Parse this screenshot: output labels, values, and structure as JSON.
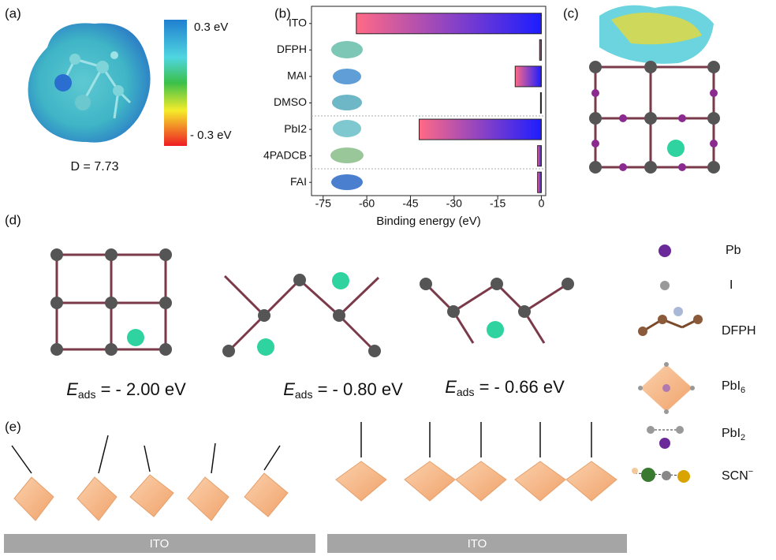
{
  "panel_labels": {
    "a": "(a)",
    "b": "(b)",
    "c": "(c)",
    "d": "(d)",
    "e": "(e)"
  },
  "panel_a": {
    "colorbar": {
      "top_label": "0.3 eV",
      "bottom_label": "- 0.3 eV"
    },
    "dipole": "D = 7.73"
  },
  "chart_data": {
    "type": "barh",
    "categories": [
      "ITO",
      "DFPH",
      "MAI",
      "DMSO",
      "PbI2",
      "4PADCB",
      "FAI"
    ],
    "values": [
      -63.6,
      -0.6,
      -9,
      -0.3,
      -42,
      -1.3,
      -1.3
    ],
    "xlim": [
      -79,
      1.5
    ],
    "xticks": [
      -75,
      -60,
      -45,
      -30,
      -15,
      0
    ],
    "xlabel": "Binding energy (eV)",
    "gradient_colors": [
      "#ff6a86",
      "#1d1dff"
    ]
  },
  "panel_d": {
    "energies": [
      {
        "symbol": "E",
        "subscript": "ads",
        "value": " = - 2.00 eV"
      },
      {
        "symbol": "E",
        "subscript": "ads",
        "value": " = - 0.80 eV"
      },
      {
        "symbol": "E",
        "subscript": "ads",
        "value": " = - 0.66 eV"
      }
    ],
    "legend": [
      {
        "text": "Pb"
      },
      {
        "text": "I"
      },
      {
        "text": "DFPH"
      },
      {
        "text": "PbI",
        "subscript": "6"
      },
      {
        "text": "PbI",
        "subscript": "2"
      },
      {
        "text": "SCN",
        "superscript": "−"
      }
    ]
  },
  "panel_e": {
    "substrates": [
      "ITO",
      "ITO"
    ]
  }
}
